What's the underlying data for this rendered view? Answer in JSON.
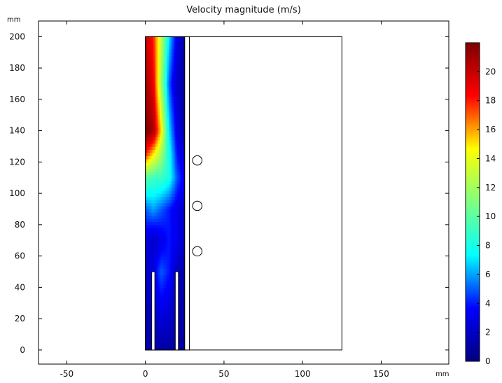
{
  "chart_data": {
    "type": "heatmap",
    "title": "Velocity magnitude (m/s)",
    "x_unit": "mm",
    "y_unit": "mm",
    "xlim": [
      -68,
      193
    ],
    "ylim": [
      -9,
      210
    ],
    "x_ticks": [
      -50,
      0,
      50,
      100,
      150
    ],
    "y_ticks": [
      0,
      20,
      40,
      60,
      80,
      100,
      120,
      140,
      160,
      180,
      200
    ],
    "colorbar": {
      "range": [
        0,
        22
      ],
      "ticks": [
        0,
        2,
        4,
        6,
        8,
        10,
        12,
        14,
        16,
        18,
        20
      ],
      "colormap": "jet",
      "colors": [
        "#00007f",
        "#0000ff",
        "#00ffff",
        "#7fff7f",
        "#ffff00",
        "#ff0000",
        "#7f0000"
      ]
    },
    "geometry": {
      "channel": {
        "x": [
          0,
          25
        ],
        "y": [
          0,
          200
        ]
      },
      "wall": {
        "x": [
          25,
          28
        ],
        "y": [
          0,
          200
        ]
      },
      "outer_domain": {
        "x": [
          0,
          125
        ],
        "y": [
          0,
          200
        ]
      },
      "inlet_baffles": [
        {
          "x": [
            4,
            6
          ],
          "y": [
            0,
            50
          ]
        },
        {
          "x": [
            19,
            21
          ],
          "y": [
            0,
            50
          ]
        }
      ],
      "circles": [
        {
          "x": 33,
          "y": 121,
          "r": 3
        },
        {
          "x": 33,
          "y": 92,
          "r": 3
        },
        {
          "x": 33,
          "y": 63,
          "r": 3
        }
      ]
    },
    "velocity_field": [
      {
        "y": 200,
        "x": [
          0,
          5,
          10,
          15,
          20,
          25
        ],
        "values": [
          20,
          18,
          13,
          7,
          3,
          1
        ]
      },
      {
        "y": 170,
        "x": [
          0,
          5,
          10,
          15,
          20,
          25
        ],
        "values": [
          21,
          19,
          12,
          5,
          2,
          1
        ]
      },
      {
        "y": 140,
        "x": [
          0,
          5,
          10,
          15,
          20,
          25
        ],
        "values": [
          22,
          21,
          15,
          7,
          3,
          1
        ]
      },
      {
        "y": 125,
        "x": [
          0,
          5,
          10,
          15,
          20,
          25
        ],
        "values": [
          18,
          15,
          12,
          8,
          4,
          2
        ]
      },
      {
        "y": 110,
        "x": [
          0,
          5,
          10,
          15,
          20,
          25
        ],
        "values": [
          10,
          9,
          9,
          8,
          5,
          3
        ]
      },
      {
        "y": 90,
        "x": [
          0,
          5,
          10,
          15,
          20,
          25
        ],
        "values": [
          5,
          6,
          5,
          4,
          3,
          2
        ]
      },
      {
        "y": 70,
        "x": [
          0,
          5,
          10,
          15,
          20,
          25
        ],
        "values": [
          3,
          2,
          3,
          4,
          3,
          2
        ]
      },
      {
        "y": 50,
        "x": [
          0,
          5,
          10,
          15,
          20,
          25
        ],
        "values": [
          2,
          3,
          5,
          4,
          2,
          1
        ]
      },
      {
        "y": 0,
        "x": [
          0,
          5,
          10,
          15,
          20,
          25
        ],
        "values": [
          1,
          1,
          1,
          1,
          1,
          1
        ]
      }
    ]
  }
}
